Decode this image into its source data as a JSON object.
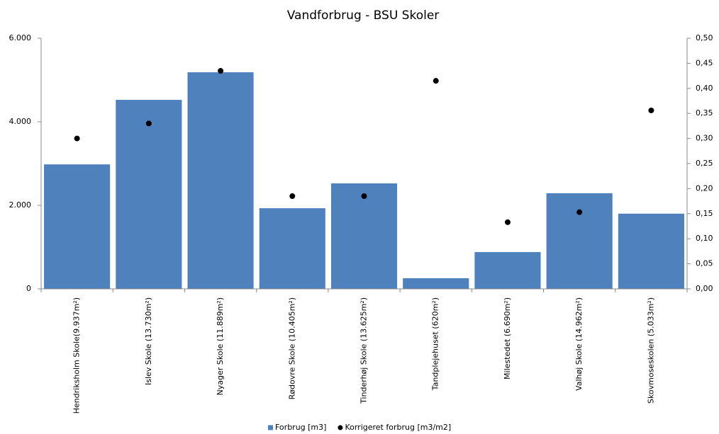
{
  "chart_data": {
    "type": "bar",
    "title": "Vandforbrug - BSU Skoler",
    "categories": [
      "Hendriksholm Skole(9.937m²)",
      "Islev Skole (13.730m²)",
      "Nyager Skole (11.889m²)",
      "Rødovre Skole (10.405m²)",
      "Tinderhøj Skole (13.625m²)",
      "Tandplejehuset (620m²)",
      "Milestedet (6.690m²)",
      "Valhøj Skole (14.962m²)",
      "Skovmoseskolen (5.033m²)"
    ],
    "series": [
      {
        "name": "Forbrug [m3]",
        "type": "bar",
        "color": "#4f81bd",
        "values": [
          2980,
          4525,
          5185,
          1930,
          2525,
          255,
          880,
          2290,
          1800
        ]
      },
      {
        "name": "Korrigeret forbrug [m3/m2]",
        "type": "scatter",
        "axis": "y2",
        "color": "#000000",
        "values": [
          0.3,
          0.33,
          0.435,
          0.185,
          0.185,
          0.415,
          0.133,
          0.153,
          0.356
        ]
      }
    ],
    "ylim": [
      0,
      6000
    ],
    "yticks": [
      0,
      {
        "value": 2000,
        "label": "2.000"
      },
      {
        "value": 4000,
        "label": "4.000"
      },
      {
        "value": 6000,
        "label": "6.000"
      }
    ],
    "y2lim": [
      0,
      0.5
    ],
    "y2ticks": [
      {
        "value": 0,
        "label": "0,00"
      },
      {
        "value": 0.05,
        "label": "0,05"
      },
      {
        "value": 0.1,
        "label": "0,10"
      },
      {
        "value": 0.15,
        "label": "0,15"
      },
      {
        "value": 0.2,
        "label": "0,20"
      },
      {
        "value": 0.25,
        "label": "0,25"
      },
      {
        "value": 0.3,
        "label": "0,30"
      },
      {
        "value": 0.35,
        "label": "0,35"
      },
      {
        "value": 0.4,
        "label": "0,40"
      },
      {
        "value": 0.45,
        "label": "0,45"
      },
      {
        "value": 0.5,
        "label": "0,50"
      }
    ],
    "legend": "bottom"
  }
}
